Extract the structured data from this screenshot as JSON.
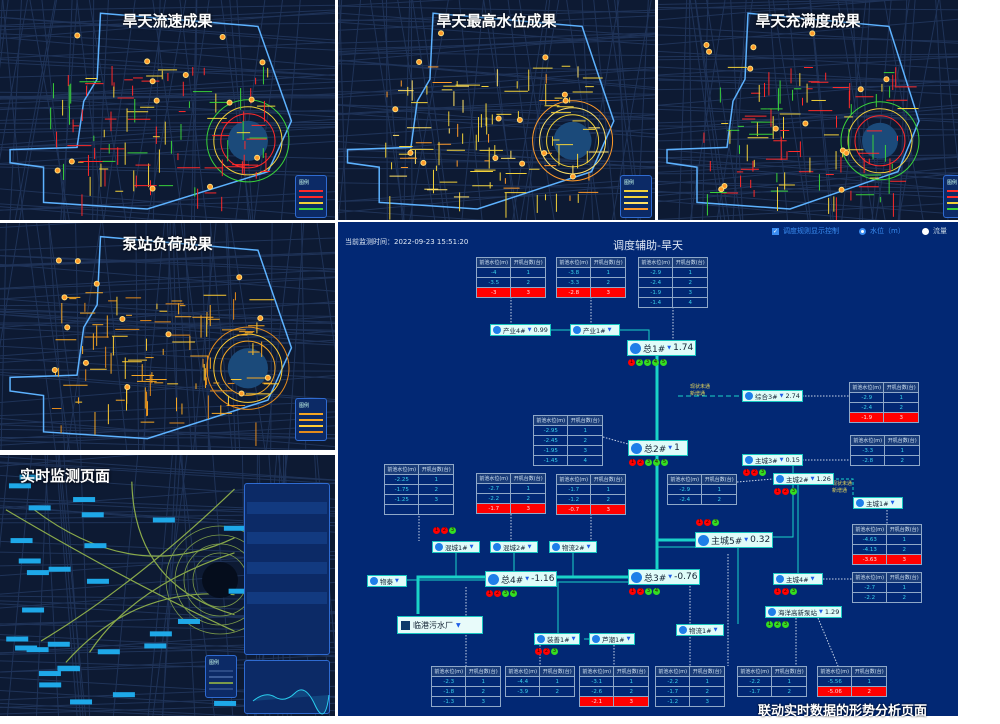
{
  "maps": [
    {
      "id": "flow",
      "title": "旱天流速成果",
      "palette": [
        "#ff2a2a",
        "#ff2a2a",
        "#f2d13a",
        "#39d23a"
      ],
      "legend_title": "图例"
    },
    {
      "id": "level",
      "title": "旱天最高水位成果",
      "palette": [
        "#f2d13a",
        "#f2d13a",
        "#ffe066",
        "#ff9a2a"
      ],
      "legend_title": "图例"
    },
    {
      "id": "fill",
      "title": "旱天充满度成果",
      "palette": [
        "#ff2a2a",
        "#ff2a2a",
        "#f2d13a",
        "#39d23a"
      ],
      "legend_title": "图例"
    },
    {
      "id": "pump",
      "title": "泵站负荷成果",
      "palette": [
        "#f5a623",
        "#f5a623",
        "#ffcc33",
        "#e38a1c"
      ],
      "legend_title": "图例"
    },
    {
      "id": "monitor",
      "title": "实时监测页面",
      "palette": [
        "#2b4a85",
        "#3a5a95",
        "#7a9a4a",
        "#2b4a85"
      ],
      "legend_title": "图例"
    }
  ],
  "diagram": {
    "time_label": "当前监测时间：2022-09-23 15:51:20",
    "title": "调度辅助-旱天",
    "controls": {
      "rule_toggle": "调度规则显示控制",
      "rule_checked": true,
      "radio_level": "水位（m）",
      "radio_flow": "流量",
      "selected": "水位（m）"
    },
    "table_headers": [
      "前池水位(m)",
      "开机台数(台)"
    ],
    "tables": [
      {
        "rows": [
          [
            "-4",
            "1"
          ],
          [
            "-3.5",
            "2"
          ],
          [
            "-3",
            "3"
          ]
        ],
        "red": 2
      },
      {
        "rows": [
          [
            "-3.8",
            "1"
          ],
          [
            "-3.3",
            "2"
          ],
          [
            "-2.8",
            "3"
          ]
        ],
        "red": 2
      },
      {
        "rows": [
          [
            "-2.9",
            "1"
          ],
          [
            "-2.4",
            "2"
          ],
          [
            "-1.9",
            "3"
          ],
          [
            "-1.4",
            "4"
          ]
        ],
        "red": -1
      },
      {
        "rows": [
          [
            "-2.9",
            "1"
          ],
          [
            "-2.4",
            "2"
          ],
          [
            "-1.9",
            "3"
          ]
        ],
        "red": 2
      },
      {
        "rows": [
          [
            "-3.3",
            "1"
          ],
          [
            "-2.8",
            "2"
          ]
        ],
        "red": -1
      },
      {
        "rows": [
          [
            "-2.95",
            "1"
          ],
          [
            "-2.45",
            "2"
          ],
          [
            "-1.95",
            "3"
          ],
          [
            "-1.45",
            "4"
          ]
        ],
        "red": -1
      },
      {
        "rows": [
          [
            "-2.25",
            "1"
          ],
          [
            "-1.75",
            "2"
          ],
          [
            "-1.25",
            "3"
          ],
          [
            "",
            ""
          ]
        ],
        "red": -1
      },
      {
        "rows": [
          [
            "-2.7",
            "1"
          ],
          [
            "-2.2",
            "2"
          ],
          [
            "-1.7",
            "3"
          ]
        ],
        "red": 2
      },
      {
        "rows": [
          [
            "-1.7",
            "1"
          ],
          [
            "-1.2",
            "2"
          ],
          [
            "-0.7",
            "3"
          ]
        ],
        "red": 2
      },
      {
        "rows": [
          [
            "-2.9",
            "1"
          ],
          [
            "-2.4",
            "2"
          ]
        ],
        "red": -1
      },
      {
        "rows": [
          [
            "-4.63",
            "1"
          ],
          [
            "-4.13",
            "2"
          ],
          [
            "-3.63",
            "3"
          ]
        ],
        "red": 2
      },
      {
        "rows": [
          [
            "-2.7",
            "1"
          ],
          [
            "-2.2",
            "2"
          ]
        ],
        "red": -1
      },
      {
        "rows": [
          [
            "-2.3",
            "1"
          ],
          [
            "-1.8",
            "2"
          ],
          [
            "-1.3",
            "3"
          ]
        ],
        "red": -1
      },
      {
        "rows": [
          [
            "-4.4",
            "1"
          ],
          [
            "-3.9",
            "2"
          ]
        ],
        "red": -1
      },
      {
        "rows": [
          [
            "-3.1",
            "1"
          ],
          [
            "-2.6",
            "2"
          ],
          [
            "-2.1",
            "3"
          ]
        ],
        "red": 2
      },
      {
        "rows": [
          [
            "-2.2",
            "1"
          ],
          [
            "-1.7",
            "2"
          ],
          [
            "-1.2",
            "3"
          ]
        ],
        "red": -1
      },
      {
        "rows": [
          [
            "-2.2",
            "1"
          ],
          [
            "-1.7",
            "2"
          ]
        ],
        "red": -1
      },
      {
        "rows": [
          [
            "-5.56",
            "1"
          ],
          [
            "-5.06",
            "2"
          ]
        ],
        "red": 1
      }
    ],
    "nodes": [
      {
        "name": "产业4#",
        "value": "0.99"
      },
      {
        "name": "产业1#",
        "value": ""
      },
      {
        "name": "总1#",
        "value": "1.74",
        "big": true,
        "dots": [
          "r",
          "g",
          "g",
          "g",
          "g"
        ]
      },
      {
        "name": "综合3#",
        "value": "2.74"
      },
      {
        "name": "总2#",
        "value": "1",
        "big": true,
        "dots": [
          "r",
          "r",
          "g",
          "g",
          "g"
        ]
      },
      {
        "name": "主城3#",
        "value": "0.15",
        "dots": [
          "r",
          "r",
          "g"
        ]
      },
      {
        "name": "主城2#",
        "value": "1.26",
        "dots": [
          "r",
          "r",
          "g"
        ]
      },
      {
        "name": "主城1#",
        "value": ""
      },
      {
        "name": "主城5#",
        "value": "0.32",
        "big": true,
        "dots": [
          "r",
          "r",
          "g"
        ]
      },
      {
        "name": "混城1#",
        "value": "",
        "dots": [
          "r",
          "r",
          "g"
        ]
      },
      {
        "name": "混城2#",
        "value": ""
      },
      {
        "name": "物流2#",
        "value": ""
      },
      {
        "name": "物泰",
        "value": ""
      },
      {
        "name": "总4#",
        "value": "-1.16",
        "big": true,
        "dots": [
          "r",
          "r",
          "g",
          "g"
        ]
      },
      {
        "name": "总3#",
        "value": "-0.76",
        "big": true,
        "dots": [
          "r",
          "r",
          "g",
          "g"
        ]
      },
      {
        "name": "主城4#",
        "value": "",
        "dots": [
          "r",
          "r",
          "g"
        ]
      },
      {
        "name": "海洋高新泵站",
        "value": "1.29",
        "dots": [
          "g",
          "g",
          "g"
        ]
      },
      {
        "name": "物流1#",
        "value": ""
      },
      {
        "name": "装善1#",
        "value": "",
        "dots": [
          "r",
          "r",
          "g"
        ]
      },
      {
        "name": "芦潮1#",
        "value": ""
      }
    ],
    "plant": "临港污水厂",
    "route_labels": [
      "现状未通",
      "新增通"
    ],
    "colors": {
      "red": "#ff0000",
      "green": "#33dd22",
      "pipe": "#19d3c8",
      "bg": "#022874"
    }
  },
  "caption": "联动实时数据的形势分析页面"
}
